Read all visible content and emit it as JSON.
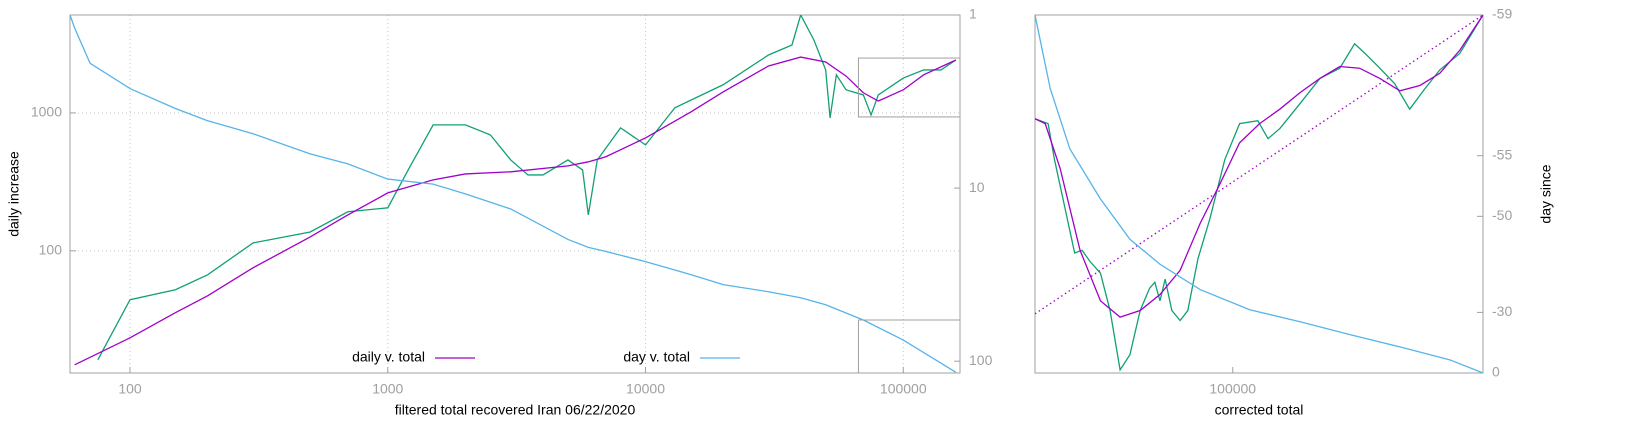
{
  "chart_data": [
    {
      "type": "line",
      "xlabel": "filtered total recovered Iran 06/22/2020",
      "ylabel": "daily increase",
      "xlog": true,
      "ylog": true,
      "y2log": true,
      "grid": true,
      "legend": "bottom",
      "xlim": [
        58.5,
        166000
      ],
      "xticks": [
        100,
        1000,
        10000,
        100000
      ],
      "ylim": [
        13,
        5130
      ],
      "yticks": [
        100,
        1000
      ],
      "y2lim": [
        117,
        1
      ],
      "y2ticks": [
        1,
        10,
        100
      ],
      "series": [
        {
          "color": "#10a075",
          "x": [
            75,
            100,
            150,
            200,
            300,
            500,
            700,
            1000,
            1200,
            1500,
            2000,
            2500,
            3000,
            3500,
            4000,
            5000,
            5700,
            6000,
            6500,
            8000,
            10000,
            13000,
            20000,
            30000,
            37000,
            40000,
            45000,
            50000,
            52000,
            55000,
            60000,
            70000,
            75000,
            80000,
            100000,
            120000,
            140000,
            160000
          ],
          "values": [
            16.2,
            44.2,
            52.2,
            67,
            114,
            137,
            192,
            205,
            386,
            819,
            819,
            693,
            456,
            355,
            355,
            456,
            386,
            182,
            456,
            779,
            586,
            1090,
            1600,
            2630,
            3110,
            5130,
            3380,
            2050,
            920,
            1890,
            1470,
            1350,
            967,
            1350,
            1790,
            2050,
            2050,
            2420
          ]
        },
        {
          "name": "daily v. total",
          "color": "#a000c8",
          "x": [
            61,
            100,
            150,
            200,
            300,
            500,
            700,
            1000,
            1500,
            2000,
            3000,
            5000,
            6000,
            7000,
            10000,
            15000,
            20000,
            30000,
            40000,
            50000,
            60000,
            70000,
            80000,
            100000,
            120000,
            160000
          ],
          "values": [
            14.9,
            23.4,
            35.6,
            47.2,
            75.3,
            126,
            182,
            263,
            327,
            361,
            374,
            413,
            442,
            480,
            659,
            1016,
            1420,
            2190,
            2540,
            2340,
            1850,
            1400,
            1220,
            1470,
            1890,
            2420
          ]
        },
        {
          "name": "day v. total",
          "color": "#56b4e9",
          "axis": "y2",
          "x": [
            58.5,
            61,
            70,
            100,
            150,
            200,
            300,
            500,
            700,
            1000,
            1500,
            2000,
            3000,
            5000,
            6000,
            7000,
            10000,
            15000,
            20000,
            30000,
            40000,
            50000,
            70000,
            100000,
            160000
          ],
          "values": [
            1,
            1.19,
            1.9,
            2.66,
            3.47,
            4.08,
            4.85,
            6.34,
            7.25,
            8.87,
            9.48,
            10.8,
            13.2,
            19.8,
            22,
            23.2,
            26.6,
            31.6,
            36.1,
            39.7,
            43,
            47.2,
            57.8,
            75.5,
            116
          ]
        }
      ]
    },
    {
      "type": "line",
      "xlabel": "corrected total",
      "y2label": "day since",
      "xlog": true,
      "ylog": true,
      "y2log": true,
      "grid": false,
      "xlim": [
        67000,
        166000
      ],
      "xticks": [
        100000
      ],
      "ylim": [
        935,
        2500
      ],
      "y2lim": [
        60,
        1
      ],
      "y2ticks": [
        {
          "value": 1,
          "label": "-59"
        },
        {
          "value": 5,
          "label": "-55"
        },
        {
          "value": 10,
          "label": "-50"
        },
        {
          "value": 30,
          "label": "-30"
        },
        {
          "value": 60,
          "label": "0"
        }
      ],
      "series": [
        {
          "color": "#10a075",
          "x": [
            67000,
            68800,
            69700,
            71200,
            72600,
            73700,
            74900,
            76500,
            78000,
            79600,
            81200,
            82900,
            84500,
            85400,
            86300,
            87200,
            88400,
            89900,
            91300,
            93200,
            95500,
            98400,
            101400,
            105200,
            107400,
            110000,
            114600,
            119300,
            124200,
            128000,
            130700,
            134700,
            138800,
            143100,
            147500,
            152100,
            158400,
            166000
          ],
          "values": [
            1880,
            1855,
            1680,
            1470,
            1300,
            1310,
            1270,
            1230,
            1110,
            943,
            983,
            1110,
            1180,
            1200,
            1140,
            1210,
            1110,
            1080,
            1110,
            1280,
            1430,
            1680,
            1855,
            1870,
            1780,
            1830,
            1960,
            2100,
            2160,
            2310,
            2250,
            2160,
            2070,
            1930,
            2040,
            2150,
            2250,
            2500
          ]
        },
        {
          "color": "#a000c8",
          "x": [
            67000,
            68400,
            70500,
            73400,
            76500,
            79600,
            82900,
            86300,
            89900,
            93600,
            97400,
            101400,
            105600,
            110000,
            114600,
            119300,
            124200,
            129300,
            134700,
            140300,
            146100,
            152100,
            158400,
            166000
          ],
          "values": [
            1880,
            1855,
            1640,
            1310,
            1140,
            1090,
            1110,
            1160,
            1240,
            1410,
            1570,
            1760,
            1855,
            1930,
            2020,
            2100,
            2170,
            2160,
            2100,
            2030,
            2060,
            2130,
            2270,
            2500
          ]
        },
        {
          "color": "#a000c8",
          "dash": true,
          "x": [
            67000,
            166000
          ],
          "values": [
            1100,
            2500
          ]
        },
        {
          "color": "#56b4e9",
          "axis": "y2",
          "x": [
            67000,
            69100,
            71900,
            76500,
            81200,
            86300,
            93600,
            103500,
            114600,
            126800,
            140300,
            155200,
            166000
          ],
          "values": [
            1,
            2.32,
            4.62,
            8.2,
            13,
            17.3,
            23.1,
            29.1,
            33.4,
            38.7,
            44.5,
            51.6,
            60
          ]
        }
      ]
    }
  ]
}
